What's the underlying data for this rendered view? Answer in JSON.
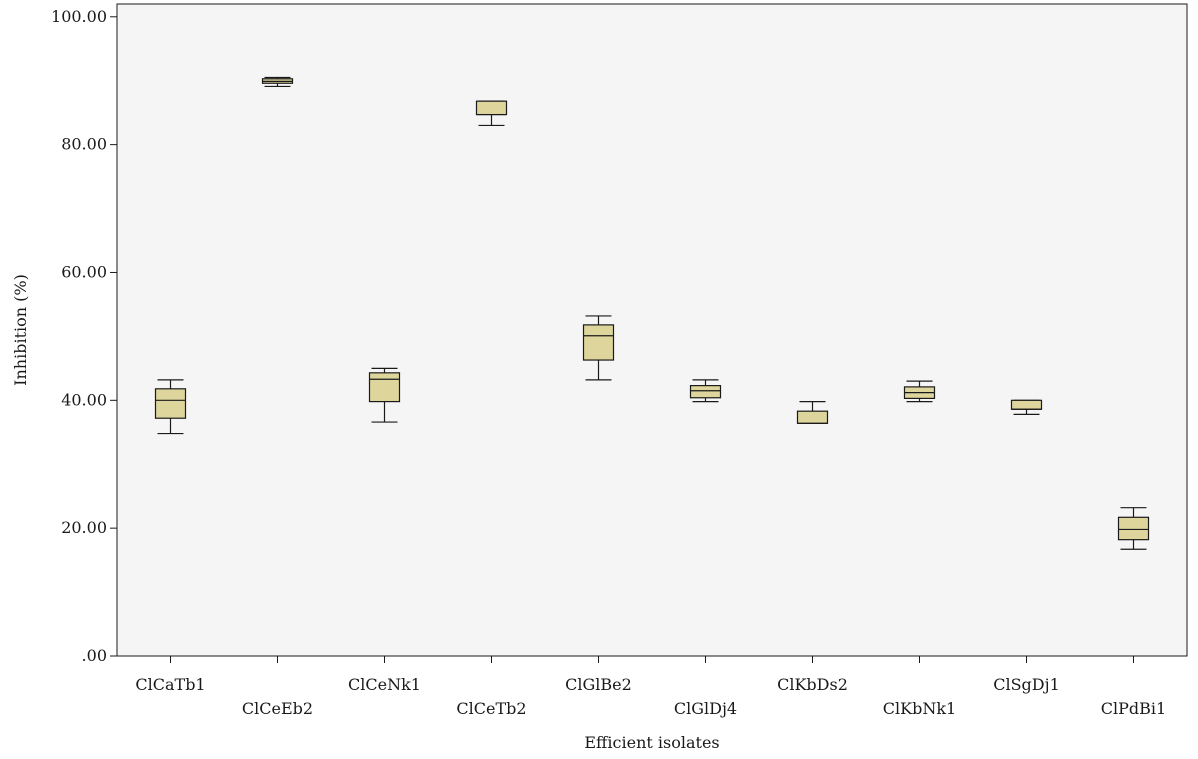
{
  "chart_data": {
    "type": "box",
    "xlabel": "Efficient isolates",
    "ylabel": "Inhibition (%)",
    "ylim": [
      0,
      102
    ],
    "yticks": [
      0,
      20,
      40,
      60,
      80,
      100
    ],
    "ytick_labels": [
      ".00",
      "20.00",
      "40.00",
      "60.00",
      "80.00",
      "100.00"
    ],
    "grid": false,
    "legend": "none",
    "categories": [
      "ClCaTb1",
      "ClCeEb2",
      "ClCeNk1",
      "ClCeTb2",
      "ClGlBe2",
      "ClGlDj4",
      "ClKbDs2",
      "ClKbNk1",
      "ClSgDj1",
      "ClPdBi1"
    ],
    "boxes": [
      {
        "category": "ClCaTb1",
        "min": 34.8,
        "q1": 37.2,
        "median": 40.0,
        "q3": 41.8,
        "max": 43.2
      },
      {
        "category": "ClCeEb2",
        "min": 89.1,
        "q1": 89.6,
        "median": 89.9,
        "q3": 90.3,
        "max": 90.5
      },
      {
        "category": "ClCeNk1",
        "min": 36.6,
        "q1": 39.8,
        "median": 43.3,
        "q3": 44.3,
        "max": 45.0
      },
      {
        "category": "ClCeTb2",
        "min": 83.0,
        "q1": 84.7,
        "median": 84.7,
        "q3": 86.8,
        "max": 86.8
      },
      {
        "category": "ClGlBe2",
        "min": 43.2,
        "q1": 46.3,
        "median": 50.1,
        "q3": 51.8,
        "max": 53.2
      },
      {
        "category": "ClGlDj4",
        "min": 39.8,
        "q1": 40.4,
        "median": 41.5,
        "q3": 42.3,
        "max": 43.2
      },
      {
        "category": "ClKbDs2",
        "min": 36.4,
        "q1": 36.4,
        "median": 36.4,
        "q3": 38.3,
        "max": 39.8
      },
      {
        "category": "ClKbNk1",
        "min": 39.8,
        "q1": 40.3,
        "median": 41.2,
        "q3": 42.1,
        "max": 43.0
      },
      {
        "category": "ClSgDj1",
        "min": 37.8,
        "q1": 38.6,
        "median": 38.6,
        "q3": 40.0,
        "max": 40.0
      },
      {
        "category": "ClPdBi1",
        "min": 16.7,
        "q1": 18.2,
        "median": 19.8,
        "q3": 21.7,
        "max": 23.2
      }
    ],
    "colors": {
      "plot_background": "#f5f5f5",
      "box_fill": "#ddd59c",
      "box_stroke": "#1a1a1a",
      "axis": "#1a1a1a"
    }
  }
}
